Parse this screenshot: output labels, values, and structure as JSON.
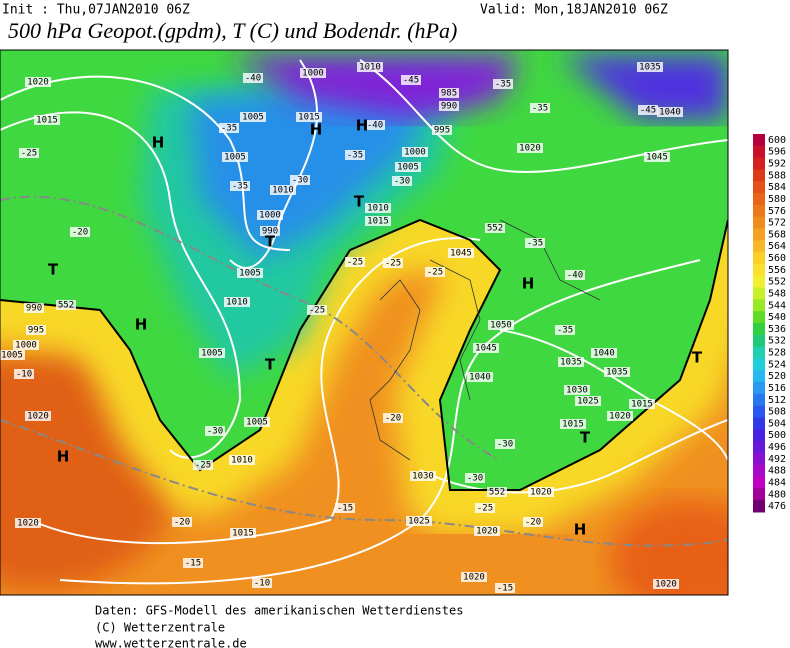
{
  "header": {
    "init": "Init : Thu,07JAN2010 06Z",
    "valid": "Valid: Mon,18JAN2010 06Z",
    "title": "500 hPa Geopot.(gpdm), T (C) und Bodendr. (hPa)"
  },
  "map_labels": [
    "1020",
    "1015",
    "1000",
    "1010",
    "-40",
    "-45",
    "-35",
    "1035",
    "985",
    "990",
    "995",
    "1005",
    "1015",
    "-35",
    "-40",
    "-35",
    "-45",
    "1040",
    "1005",
    "-35",
    "1000",
    "1020",
    "1045",
    "-25",
    "-35",
    "1010",
    "-30",
    "1005",
    "-30",
    "1010",
    "1015",
    "1000",
    "990",
    "-20",
    "-35",
    "1045",
    "-40",
    "-25",
    "-25",
    "-25",
    "1005",
    "1010",
    "990",
    "995",
    "1000",
    "1005",
    "-10",
    "-25",
    "1050",
    "-35",
    "1005",
    "1045",
    "1035",
    "1040",
    "1040",
    "1030",
    "1035",
    "1025",
    "1015",
    "1020",
    "-20",
    "-30",
    "1005",
    "1020",
    "1015",
    "-30",
    "-25",
    "1010",
    "1030",
    "-30",
    "1020",
    "1020",
    "-20",
    "1015",
    "-15",
    "1025",
    "-25",
    "-20",
    "1020",
    "-15",
    "1020",
    "-15",
    "-10",
    "1020",
    "552",
    "552",
    "552",
    "H",
    "H",
    "H",
    "T",
    "T",
    "H",
    "T",
    "T",
    "H",
    "H",
    "H",
    "T",
    "T"
  ],
  "colorbar": {
    "levels": [
      600,
      596,
      592,
      588,
      584,
      580,
      576,
      572,
      568,
      564,
      560,
      556,
      552,
      548,
      544,
      540,
      536,
      532,
      528,
      524,
      520,
      516,
      512,
      508,
      504,
      500,
      496,
      492,
      488,
      484,
      480,
      476
    ],
    "colors": [
      "#b4003c",
      "#c8102a",
      "#d42020",
      "#dc3a18",
      "#e45018",
      "#e86418",
      "#ec7818",
      "#f08c1c",
      "#f4a020",
      "#f8b828",
      "#fcd028",
      "#fce030",
      "#f0f030",
      "#c8f028",
      "#98e828",
      "#60dc28",
      "#30d040",
      "#20c878",
      "#20d0b0",
      "#20d0d8",
      "#28b8f0",
      "#2898f0",
      "#2878f0",
      "#2858f0",
      "#3038e8",
      "#4820e0",
      "#6818d8",
      "#8810d0",
      "#a808c8",
      "#c000c0",
      "#a00098",
      "#700070"
    ]
  },
  "footer": [
    "Daten: GFS-Modell des amerikanischen Wetterdienstes",
    "(C) Wetterzentrale",
    "www.wetterzentrale.de"
  ]
}
